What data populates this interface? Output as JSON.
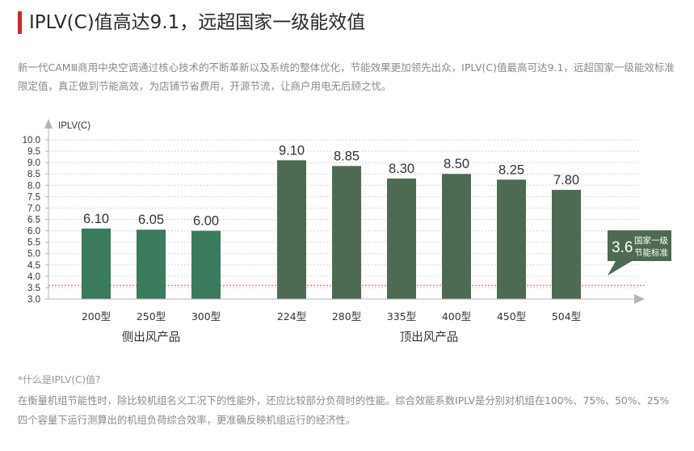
{
  "header": {
    "title": "IPLV(C)值高达9.1，远超国家一级能效值",
    "accent_color": "#d7272c"
  },
  "intro": "新一代CAMⅢ商用中央空调通过核心技术的不断革新以及系统的整体优化，节能效果更加领先出众，IPLV(C)值最高可达9.1，远超国家一级能效标准限定值，真正做到节能高效，为店铺节省费用，开源节流，让商户用电无后顾之忧。",
  "chart_data": {
    "type": "bar",
    "ylabel": "IPLV(C)",
    "ylim": [
      3.0,
      10.0
    ],
    "yticks": [
      "3.0",
      "3.5",
      "4.0",
      "4.5",
      "5.0",
      "5.5",
      "6.0",
      "6.5",
      "7.0",
      "7.5",
      "8.0",
      "8.5",
      "9.0",
      "9.5",
      "10.0"
    ],
    "grid": "dotted horizontal",
    "groups": [
      {
        "name": "侧出风产品",
        "color": "#3a7a5d",
        "categories": [
          "200型",
          "250型",
          "300型"
        ],
        "values": [
          6.1,
          6.05,
          6.0
        ],
        "labels": [
          "6.10",
          "6.05",
          "6.00"
        ]
      },
      {
        "name": "顶出风产品",
        "color": "#4d6b52",
        "categories": [
          "224型",
          "280型",
          "335型",
          "400型",
          "450型",
          "504型"
        ],
        "values": [
          9.1,
          8.85,
          8.3,
          8.5,
          8.25,
          7.8
        ],
        "labels": [
          "9.10",
          "8.85",
          "8.30",
          "8.50",
          "8.25",
          "7.80"
        ]
      }
    ],
    "reference": {
      "value": 3.6,
      "value_label": "3.6",
      "label_line1": "国家一级",
      "label_line2": "节能标准",
      "line_color": "#e0474c",
      "box_color": "#4d6b52"
    }
  },
  "note": {
    "title": "*什么是IPLV(C)值?",
    "body": "在衡量机组节能性时，除比较机组名义工况下的性能外，还应比较部分负荷时的性能。综合效能系数IPLV是分别对机组在100%、75%、50%、25%四个容量下运行测算出的机组负荷综合效率，更准确反映机组运行的经济性。"
  }
}
